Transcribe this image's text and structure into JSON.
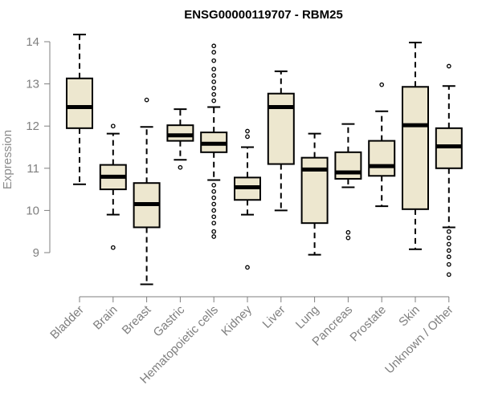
{
  "chart_data": {
    "type": "boxplot",
    "title": "ENSG00000119707 - RBM25",
    "ylabel": "Expression",
    "xlabel": "",
    "ylim": [
      8.0,
      14.3
    ],
    "yticks": [
      9,
      10,
      11,
      12,
      13,
      14
    ],
    "yticklabels": [
      "9",
      "10",
      "11",
      "12",
      "13",
      "14"
    ],
    "box_fill": "#ede7cf",
    "categories": [
      "Bladder",
      "Brain",
      "Breast",
      "Gastric",
      "Hematopoietic cells",
      "Kidney",
      "Liver",
      "Lung",
      "Pancreas",
      "Prostate",
      "Skin",
      "Unknown / Other"
    ],
    "boxes": [
      {
        "whisker_low": 10.62,
        "q1": 11.95,
        "median": 12.45,
        "q3": 13.13,
        "whisker_high": 14.17,
        "outliers": []
      },
      {
        "whisker_low": 9.9,
        "q1": 10.5,
        "median": 10.8,
        "q3": 11.08,
        "whisker_high": 11.82,
        "outliers": [
          12.0,
          9.12
        ]
      },
      {
        "whisker_low": 8.25,
        "q1": 9.6,
        "median": 10.15,
        "q3": 10.65,
        "whisker_high": 11.98,
        "outliers": [
          12.62
        ]
      },
      {
        "whisker_low": 11.2,
        "q1": 11.65,
        "median": 11.78,
        "q3": 12.02,
        "whisker_high": 12.4,
        "outliers": [
          11.02
        ]
      },
      {
        "whisker_low": 10.72,
        "q1": 11.38,
        "median": 11.58,
        "q3": 11.85,
        "whisker_high": 12.45,
        "outliers": [
          13.9,
          13.75,
          13.55,
          13.35,
          13.2,
          13.05,
          12.9,
          12.75,
          12.6,
          10.6,
          10.45,
          10.3,
          10.15,
          10.0,
          9.85,
          9.7,
          9.5,
          9.38
        ]
      },
      {
        "whisker_low": 9.9,
        "q1": 10.25,
        "median": 10.55,
        "q3": 10.78,
        "whisker_high": 11.5,
        "outliers": [
          11.88,
          11.75,
          8.65
        ]
      },
      {
        "whisker_low": 10.0,
        "q1": 11.1,
        "median": 12.45,
        "q3": 12.77,
        "whisker_high": 13.3,
        "outliers": []
      },
      {
        "whisker_low": 8.95,
        "q1": 9.7,
        "median": 10.97,
        "q3": 11.25,
        "whisker_high": 11.82,
        "outliers": []
      },
      {
        "whisker_low": 10.55,
        "q1": 10.75,
        "median": 10.9,
        "q3": 11.38,
        "whisker_high": 12.05,
        "outliers": [
          9.48,
          9.35
        ]
      },
      {
        "whisker_low": 10.1,
        "q1": 10.82,
        "median": 11.05,
        "q3": 11.65,
        "whisker_high": 12.35,
        "outliers": [
          12.98
        ]
      },
      {
        "whisker_low": 9.08,
        "q1": 10.03,
        "median": 12.02,
        "q3": 12.93,
        "whisker_high": 13.98,
        "outliers": []
      },
      {
        "whisker_low": 9.6,
        "q1": 11.0,
        "median": 11.52,
        "q3": 11.95,
        "whisker_high": 12.95,
        "outliers": [
          13.42,
          9.5,
          9.35,
          9.2,
          9.05,
          8.9,
          8.72,
          8.48
        ]
      }
    ]
  }
}
